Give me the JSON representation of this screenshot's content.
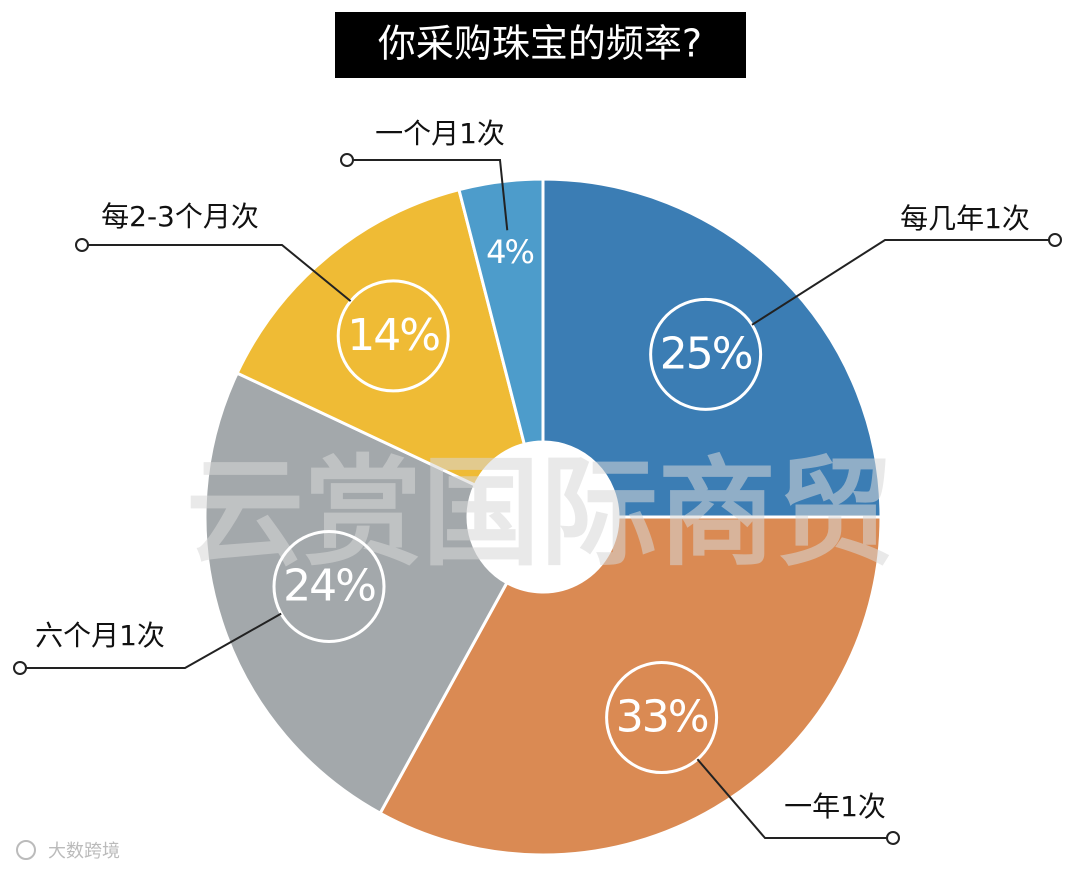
{
  "chart_data": {
    "type": "pie",
    "title": "你采购珠宝的频率?",
    "categories": [
      "每几年1次",
      "一年1次",
      "六个月1次",
      "每2-3个月次",
      "一个月1次"
    ],
    "values": [
      25,
      33,
      24,
      14,
      4
    ],
    "value_labels": [
      "25%",
      "33%",
      "24%",
      "14%",
      "4%"
    ],
    "colors": [
      "#3b7db4",
      "#da8a53",
      "#a3a8ab",
      "#efbb35",
      "#4d9ccb"
    ],
    "watermark": "云赏国际商贸",
    "source": "大数跨境"
  }
}
